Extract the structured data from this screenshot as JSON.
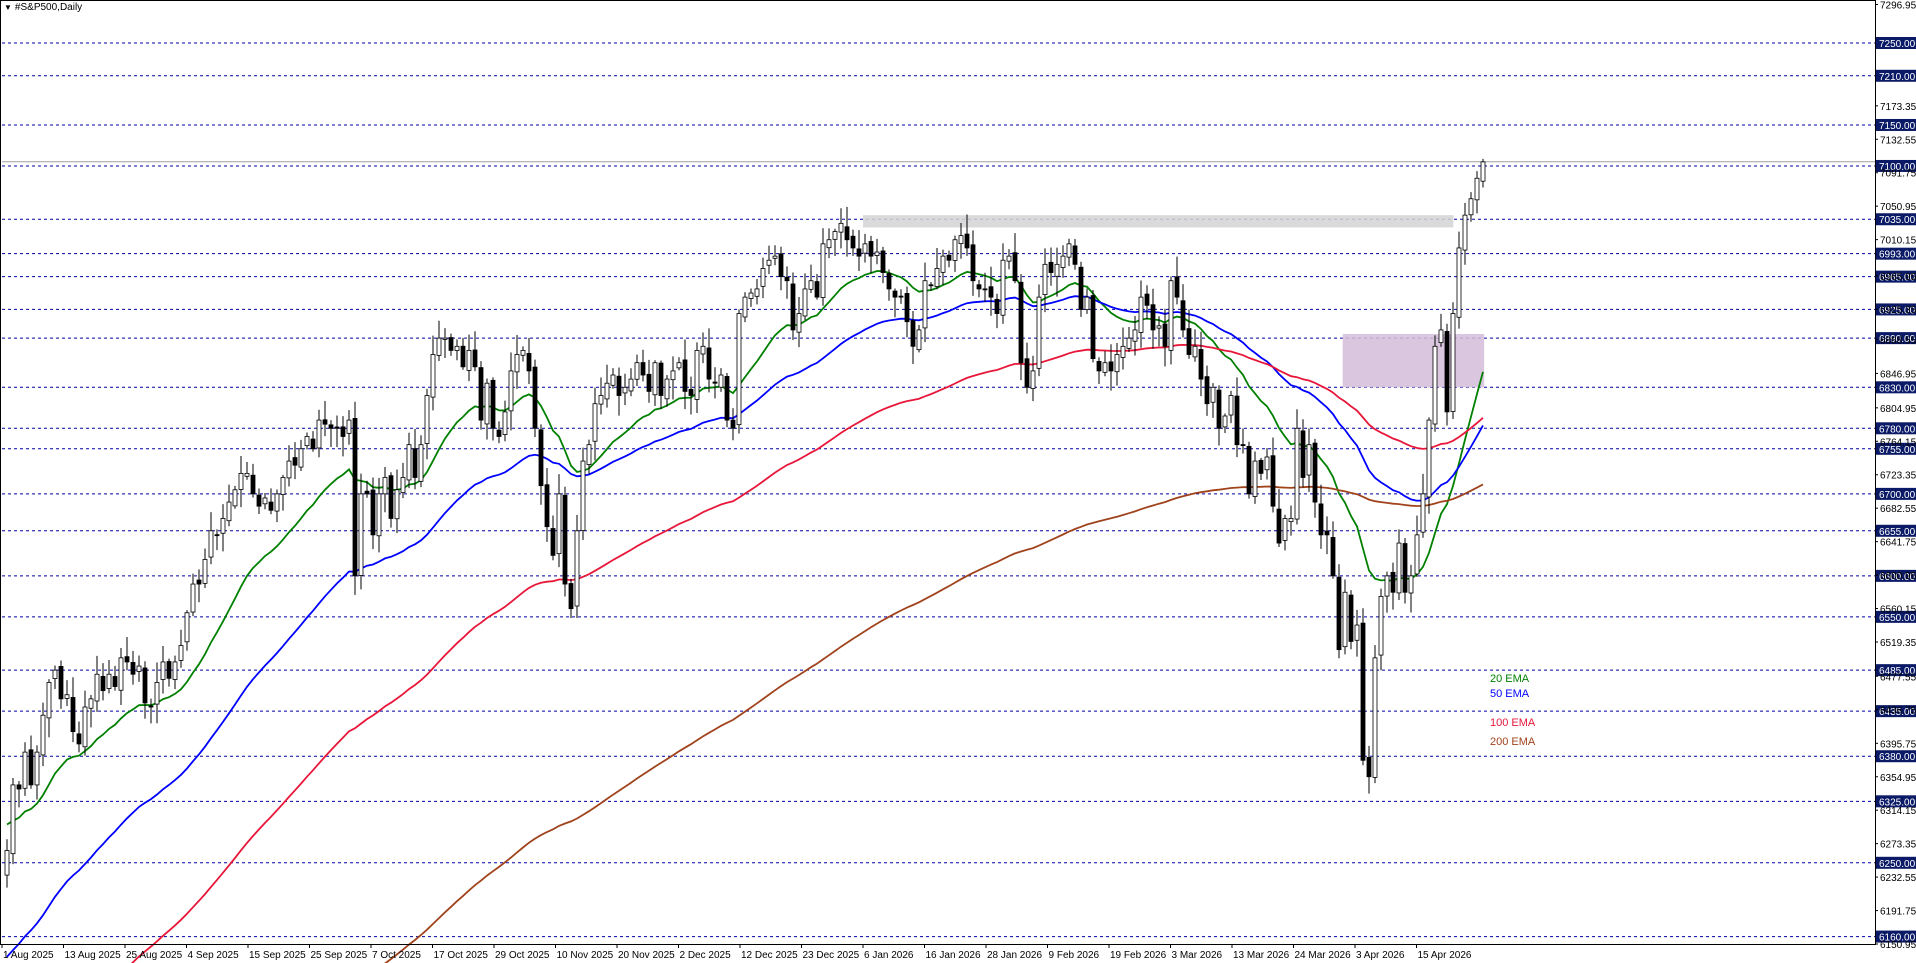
{
  "window": {
    "symbol_title": "#S&P500,Daily",
    "caret_icon": "triangle-down-icon"
  },
  "chart_data": {
    "type": "candlestick",
    "title": "#S&P500,Daily",
    "ylim": [
      6150.95,
      7300
    ],
    "price_ticks": [
      7296.95,
      7173.35,
      7132.55,
      7091.75,
      7050.95,
      7010.15,
      6965.95,
      6925.35,
      6888.55,
      6846.95,
      6804.95,
      6764.15,
      6723.35,
      6682.55,
      6641.75,
      6600.95,
      6560.15,
      6519.35,
      6477.55,
      6436.75,
      6395.75,
      6354.95,
      6314.15,
      6273.35,
      6232.55,
      6191.75,
      6150.95
    ],
    "levels": [
      7250.0,
      7210.0,
      7150.0,
      7100.0,
      7035.0,
      6993.0,
      6965.0,
      6925.0,
      6890.0,
      6830.0,
      6780.0,
      6755.0,
      6700.0,
      6655.0,
      6600.0,
      6550.0,
      6485.0,
      6435.0,
      6380.0,
      6325.0,
      6250.0,
      6160.0
    ],
    "current_price": 7105.2,
    "x_labels": [
      "1 Aug 2025",
      "13 Aug 2025",
      "25 Aug 2025",
      "4 Sep 2025",
      "15 Sep 2025",
      "25 Sep 2025",
      "7 Oct 2025",
      "17 Oct 2025",
      "29 Oct 2025",
      "10 Nov 2025",
      "20 Nov 2025",
      "2 Dec 2025",
      "12 Dec 2025",
      "23 Dec 2025",
      "6 Jan 2026",
      "16 Jan 2026",
      "28 Jan 2026",
      "9 Feb 2026",
      "19 Feb 2026",
      "3 Mar 2026",
      "13 Mar 2026",
      "24 Mar 2026",
      "3 Apr 2026",
      "15 Apr 2026"
    ],
    "zones": [
      {
        "from": 7025,
        "to": 7040,
        "start_label_index": 14,
        "end_label_index": 23.6,
        "color": "#d3d3d3"
      },
      {
        "from": 6830,
        "to": 6895,
        "start_label_index": 21.8,
        "end_label_index": 24.1,
        "color": "#d4bcd9"
      }
    ],
    "series": [
      {
        "name": "20 EMA",
        "color": "#008000"
      },
      {
        "name": "50 EMA",
        "color": "#0000ff"
      },
      {
        "name": "100 EMA",
        "color": "#e8173a"
      },
      {
        "name": "200 EMA",
        "color": "#a0431c"
      }
    ],
    "closes": [
      6265,
      6345,
      6340,
      6385,
      6345,
      6385,
      6430,
      6470,
      6485,
      6450,
      6455,
      6410,
      6395,
      6440,
      6450,
      6480,
      6460,
      6480,
      6465,
      6500,
      6495,
      6480,
      6490,
      6445,
      6440,
      6470,
      6495,
      6475,
      6495,
      6515,
      6555,
      6590,
      6590,
      6620,
      6655,
      6650,
      6670,
      6690,
      6705,
      6725,
      6725,
      6700,
      6685,
      6695,
      6680,
      6700,
      6720,
      6740,
      6735,
      6755,
      6770,
      6755,
      6790,
      6785,
      6780,
      6780,
      6770,
      6790,
      6600,
      6700,
      6700,
      6650,
      6700,
      6720,
      6670,
      6705,
      6720,
      6760,
      6720,
      6760,
      6820,
      6870,
      6890,
      6890,
      6875,
      6880,
      6855,
      6875,
      6855,
      6790,
      6835,
      6780,
      6770,
      6800,
      6850,
      6870,
      6875,
      6850,
      6780,
      6710,
      6660,
      6625,
      6700,
      6590,
      6560,
      6655,
      6740,
      6760,
      6810,
      6820,
      6835,
      6845,
      6820,
      6830,
      6840,
      6860,
      6845,
      6825,
      6860,
      6820,
      6840,
      6850,
      6860,
      6825,
      6820,
      6875,
      6880,
      6840,
      6835,
      6845,
      6790,
      6780,
      6920,
      6940,
      6945,
      6950,
      6975,
      6985,
      6990,
      6965,
      6960,
      6900,
      6920,
      6950,
      6960,
      6940,
      7005,
      7010,
      7020,
      7030,
      7010,
      7000,
      6990,
      7005,
      6990,
      6995,
      6970,
      6950,
      6940,
      6940,
      6910,
      6880,
      6900,
      6960,
      6955,
      6975,
      6990,
      6985,
      7010,
      7015,
      7000,
      6960,
      6950,
      6950,
      6940,
      6920,
      6985,
      6990,
      6960,
      6860,
      6830,
      6850,
      6940,
      6980,
      6970,
      6980,
      6990,
      7005,
      6980,
      6925,
      6940,
      6865,
      6850,
      6860,
      6850,
      6870,
      6880,
      6890,
      6900,
      6940,
      6930,
      6900,
      6905,
      6880,
      6960,
      6940,
      6900,
      6870,
      6880,
      6840,
      6810,
      6830,
      6780,
      6795,
      6820,
      6760,
      6760,
      6700,
      6740,
      6725,
      6745,
      6685,
      6640,
      6670,
      6670,
      6780,
      6720,
      6760,
      6690,
      6650,
      6650,
      6600,
      6510,
      6580,
      6520,
      6540,
      6375,
      6355,
      6500,
      6575,
      6600,
      6580,
      6640,
      6580,
      6600,
      6650,
      6700,
      6790,
      6880,
      6900,
      6800,
      6920,
      7000,
      7040,
      7060,
      7085,
      7105
    ]
  }
}
